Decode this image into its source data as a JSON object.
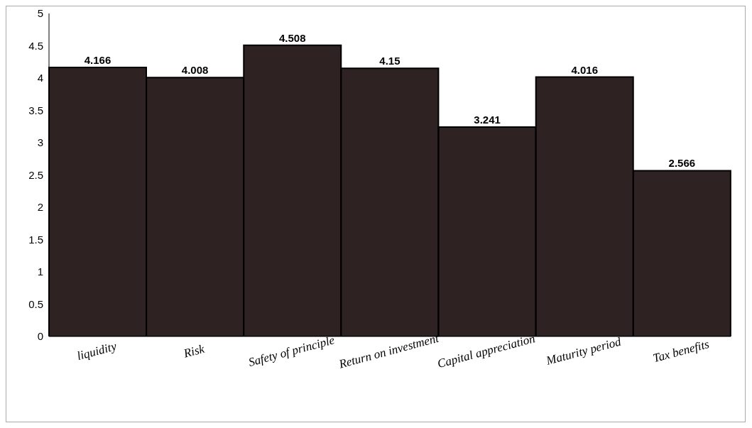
{
  "chart_data": {
    "type": "bar",
    "categories": [
      "liquidity",
      "Risk",
      "Safety of principle",
      "Return on investment",
      "Capital appreciation",
      "Maturity period",
      "Tax benefits"
    ],
    "values": [
      4.166,
      4.008,
      4.508,
      4.15,
      3.241,
      4.016,
      2.566
    ],
    "color": "#2e2222",
    "ylim": [
      0,
      5
    ],
    "yticks": [
      0,
      0.5,
      1,
      1.5,
      2,
      2.5,
      3,
      3.5,
      4,
      4.5,
      5
    ],
    "grid": false,
    "data_labels": true
  }
}
